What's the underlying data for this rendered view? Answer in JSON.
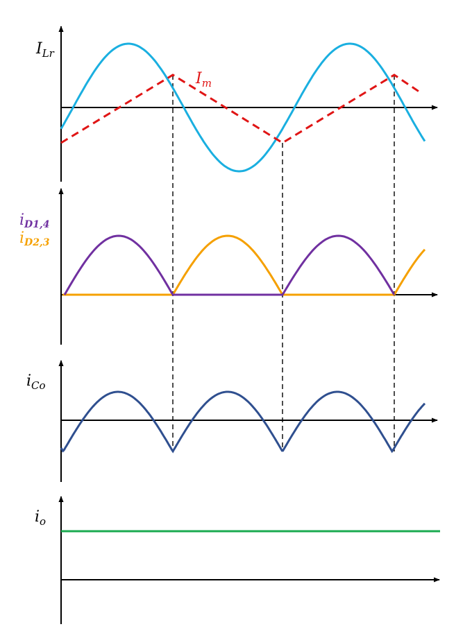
{
  "colors": {
    "axis": "#000000",
    "i_Lr": "#1AAFE0",
    "I_m": "#E01515",
    "i_D14": "#7030A0",
    "i_D23": "#F5A000",
    "i_Co": "#2F4F8F",
    "i_o": "#1AAA50",
    "guide": "#000000"
  },
  "labels": {
    "i_Lr": {
      "main": "I",
      "sub": "Lr"
    },
    "I_m": {
      "main": "I",
      "sub": "m"
    },
    "i_D14": {
      "main": "i",
      "sub": "D1,4"
    },
    "i_D23": {
      "main": "i",
      "sub": "D2,3"
    },
    "i_Co": {
      "main": "i",
      "sub": "Co"
    },
    "i_o": {
      "main": "i",
      "sub": "o"
    }
  },
  "waveforms": {
    "sections": [
      "i_Lr / I_m",
      "i_D1,4 / i_D2,3",
      "i_Co",
      "i_o"
    ],
    "switching_instants": 3,
    "i_Lr_shape": "sinusoid",
    "I_m_shape": "triangular (dashed)",
    "i_D_shape": "alternating half-sine pulses",
    "i_Co_shape": "rectified sine minus DC",
    "i_o_shape": "constant DC"
  }
}
